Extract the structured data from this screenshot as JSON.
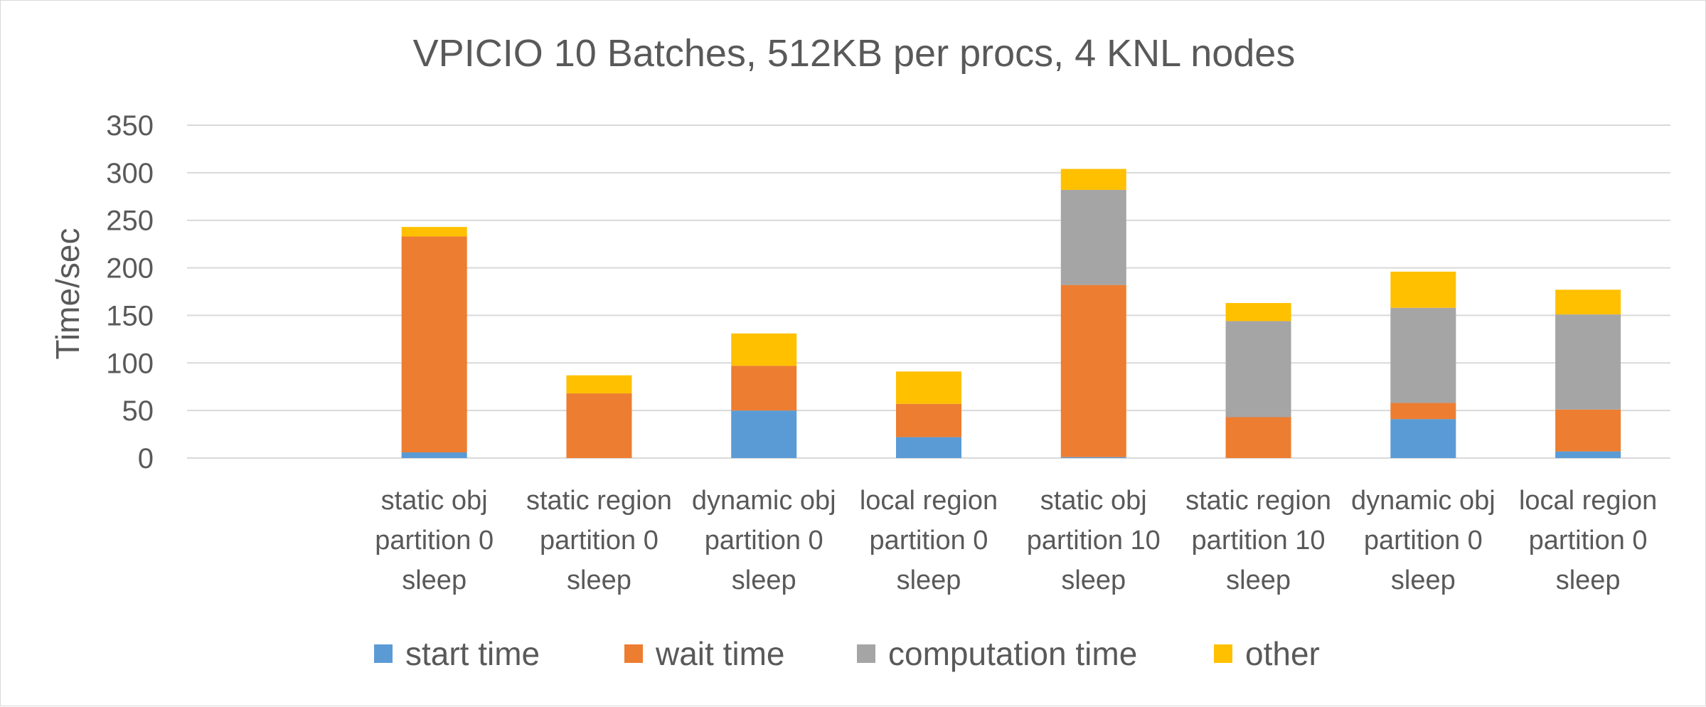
{
  "chart_data": {
    "type": "bar",
    "stacked": true,
    "title": "VPICIO 10 Batches, 512KB per procs, 4 KNL nodes",
    "xlabel": "",
    "ylabel": "Time/sec",
    "ylim": [
      0,
      350
    ],
    "yticks": [
      0,
      50,
      100,
      150,
      200,
      250,
      300,
      350
    ],
    "grid": true,
    "legend_position": "bottom",
    "categories": [
      [
        "static obj",
        "partition 0",
        "sleep"
      ],
      [
        "static region",
        "partition 0",
        "sleep"
      ],
      [
        "dynamic obj",
        "partition 0",
        "sleep"
      ],
      [
        "local region",
        "partition 0",
        "sleep"
      ],
      [
        "static obj",
        "partition 10",
        "sleep"
      ],
      [
        "static region",
        "partition 10",
        "sleep"
      ],
      [
        "dynamic obj",
        "partition 0",
        "sleep"
      ],
      [
        "local region",
        "partition 0",
        "sleep"
      ]
    ],
    "series": [
      {
        "name": "start time",
        "color": "#5b9bd5",
        "values": [
          6,
          0,
          50,
          22,
          1,
          0,
          41,
          7
        ]
      },
      {
        "name": "wait time",
        "color": "#ed7d31",
        "values": [
          227,
          68,
          47,
          35,
          181,
          43,
          17,
          44
        ]
      },
      {
        "name": "computation time",
        "color": "#a5a5a5",
        "values": [
          0,
          0,
          0,
          0,
          100,
          101,
          100,
          100
        ]
      },
      {
        "name": "other",
        "color": "#ffc000",
        "values": [
          10,
          19,
          34,
          34,
          22,
          19,
          38,
          26
        ]
      }
    ]
  }
}
